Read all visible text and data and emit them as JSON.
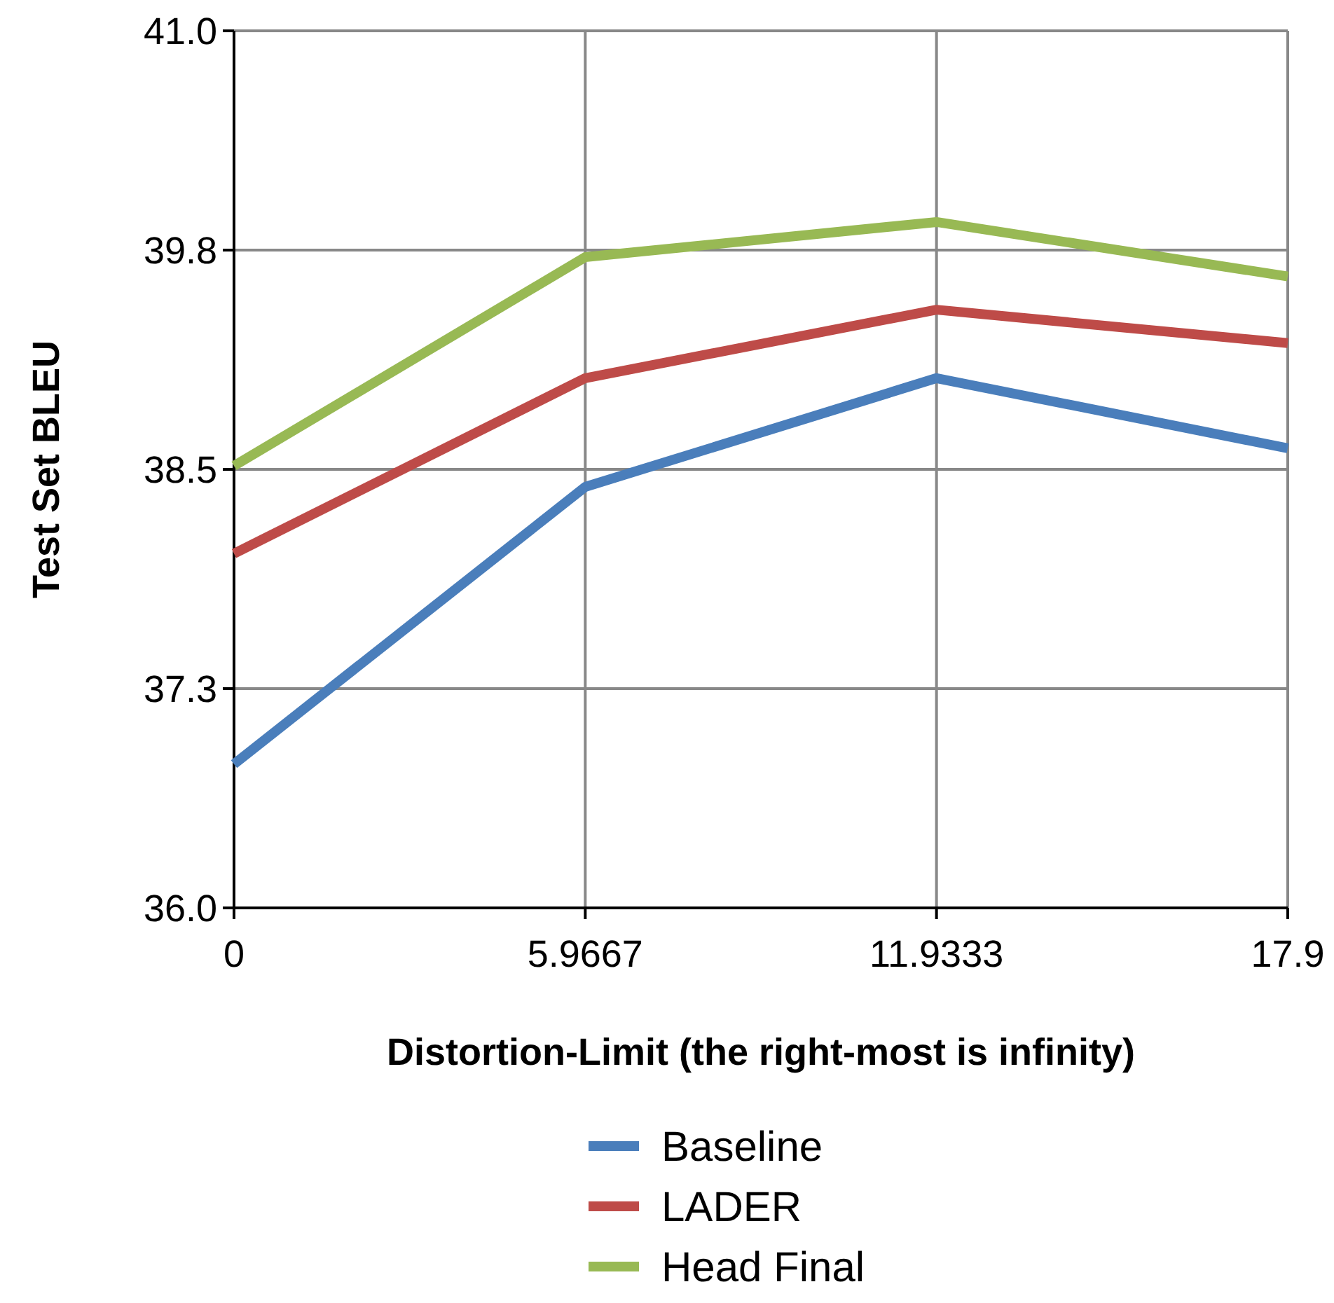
{
  "chart_data": {
    "type": "line",
    "xlabel": "Distortion-Limit (the right-most is infinity)",
    "ylabel": "Test Set BLEU",
    "x": [
      0,
      5.9667,
      11.9333,
      17.9
    ],
    "xlim": [
      0,
      17.9
    ],
    "xticks": [
      0,
      5.9667,
      11.9333,
      17.9
    ],
    "ylim": [
      36,
      41
    ],
    "yticks": [
      {
        "value": 36,
        "label": "36.0"
      },
      {
        "value": 37.25,
        "label": "37.3"
      },
      {
        "value": 38.5,
        "label": "38.5"
      },
      {
        "value": 39.75,
        "label": "39.8"
      },
      {
        "value": 41,
        "label": "41.0"
      }
    ],
    "series": [
      {
        "name": "Baseline",
        "color": "#4a7ebb",
        "values": [
          36.82,
          38.4,
          39.02,
          38.62
        ]
      },
      {
        "name": "LADER",
        "color": "#be4b48",
        "values": [
          38.02,
          39.02,
          39.41,
          39.22
        ]
      },
      {
        "name": "Head Final",
        "color": "#98b954",
        "values": [
          38.52,
          39.71,
          39.91,
          39.6
        ]
      }
    ],
    "grid": true,
    "legend": "bottom",
    "marker": "none",
    "line_style": "solid"
  }
}
